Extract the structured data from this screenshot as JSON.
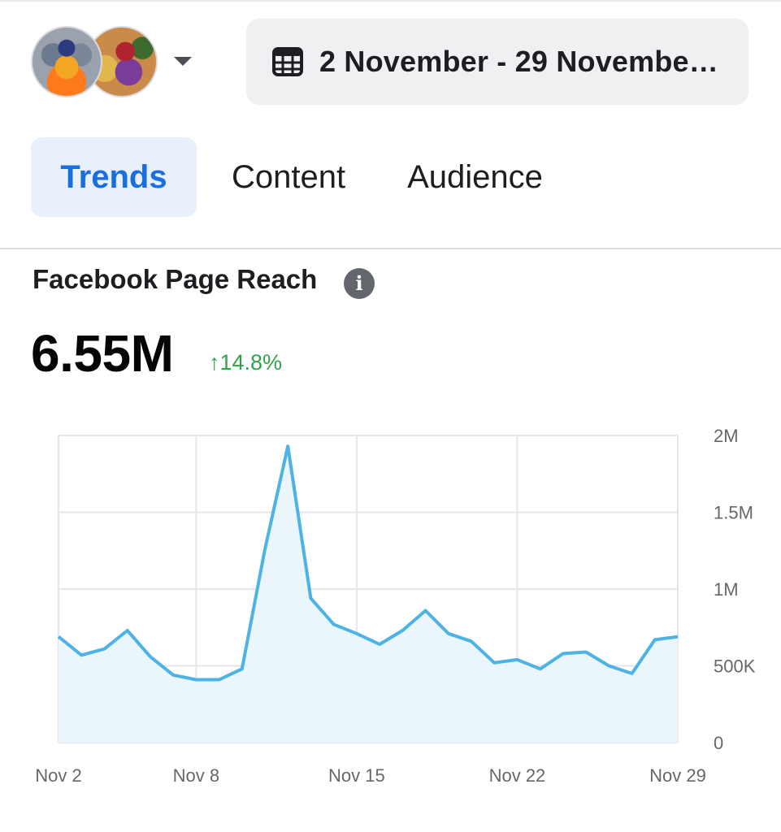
{
  "header": {
    "page_avatars": [
      "page-avatar-1",
      "page-avatar-2"
    ],
    "caret_icon": "chevron-down-icon",
    "date_icon": "calendar-icon",
    "date_range": "2 November - 29 Novembe…"
  },
  "tabs": [
    {
      "label": "Trends",
      "active": true
    },
    {
      "label": "Content",
      "active": false
    },
    {
      "label": "Audience",
      "active": false
    }
  ],
  "metric": {
    "title": "Facebook Page Reach",
    "info_icon": "i",
    "value": "6.55M",
    "change": "↑14.8%",
    "change_color": "#31a24c"
  },
  "colors": {
    "accent": "#1a6fe0",
    "line": "#4db2e4",
    "fill": "#eaf5fc"
  },
  "chart_data": {
    "type": "area",
    "title": "",
    "xlabel": "",
    "ylabel": "",
    "x": [
      "Nov 2",
      "Nov 3",
      "Nov 4",
      "Nov 5",
      "Nov 6",
      "Nov 7",
      "Nov 8",
      "Nov 9",
      "Nov 10",
      "Nov 11",
      "Nov 12",
      "Nov 13",
      "Nov 14",
      "Nov 15",
      "Nov 16",
      "Nov 17",
      "Nov 18",
      "Nov 19",
      "Nov 20",
      "Nov 21",
      "Nov 22",
      "Nov 23",
      "Nov 24",
      "Nov 25",
      "Nov 26",
      "Nov 27",
      "Nov 28",
      "Nov 29"
    ],
    "series": [
      {
        "values": [
          690000,
          570000,
          610000,
          730000,
          560000,
          440000,
          410000,
          410000,
          480000,
          1260000,
          1930000,
          940000,
          770000,
          710000,
          640000,
          730000,
          860000,
          710000,
          660000,
          520000,
          540000,
          480000,
          580000,
          590000,
          500000,
          450000,
          670000,
          690000
        ]
      }
    ],
    "x_tick_labels": [
      "Nov 2",
      "Nov 8",
      "Nov 15",
      "Nov 22",
      "Nov 29"
    ],
    "y_tick_labels": [
      "0",
      "500K",
      "1M",
      "1.5M",
      "2M"
    ],
    "y_tick_values": [
      0,
      500000,
      1000000,
      1500000,
      2000000
    ],
    "ylim": [
      0,
      2000000
    ],
    "y_axis_side": "right",
    "grid": true,
    "legend": "none"
  }
}
